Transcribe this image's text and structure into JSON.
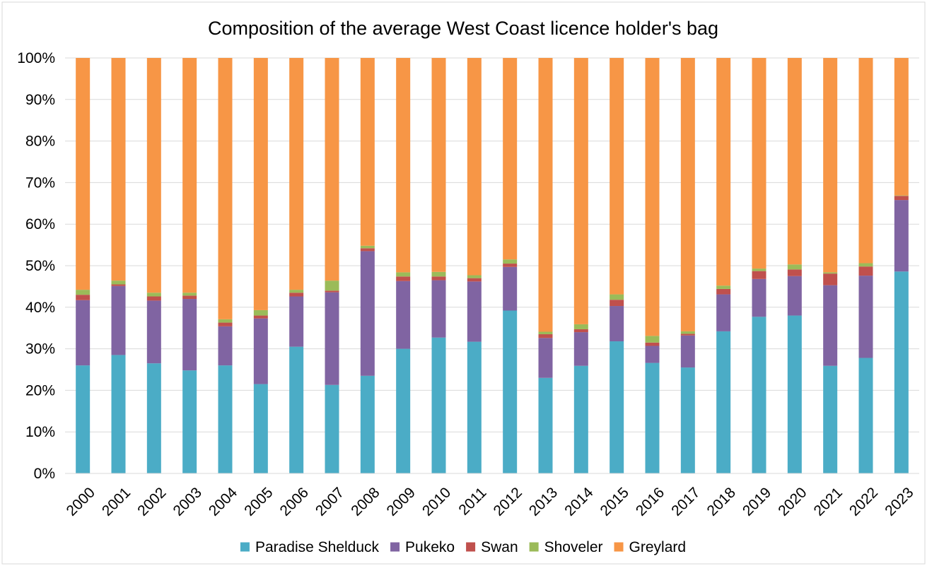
{
  "chart_data": {
    "type": "bar",
    "stacked": true,
    "percent": true,
    "title": "Composition of the average West Coast licence holder's bag",
    "xlabel": "",
    "ylabel": "",
    "ylim": [
      0,
      100
    ],
    "yticks": [
      "0%",
      "10%",
      "20%",
      "30%",
      "40%",
      "50%",
      "60%",
      "70%",
      "80%",
      "90%",
      "100%"
    ],
    "grid": true,
    "legend_position": "bottom",
    "categories": [
      "2000",
      "2001",
      "2002",
      "2003",
      "2004",
      "2005",
      "2006",
      "2007",
      "2008",
      "2009",
      "2010",
      "2011",
      "2012",
      "2013",
      "2014",
      "2015",
      "2016",
      "2017",
      "2018",
      "2019",
      "2020",
      "2021",
      "2022",
      "2023"
    ],
    "series": [
      {
        "name": "Paradise Shelduck",
        "color": "#4BACC6",
        "values": [
          26,
          28.5,
          26.5,
          24.8,
          26,
          21.5,
          30.5,
          21.3,
          23.5,
          30,
          32.7,
          31.7,
          39.2,
          23,
          25.9,
          31.8,
          26.6,
          25.5,
          34.2,
          37.7,
          38,
          25.9,
          27.8,
          48.6
        ]
      },
      {
        "name": "Pukeko",
        "color": "#8064A2",
        "values": [
          15.7,
          16.6,
          15.1,
          17.2,
          9.4,
          15.8,
          12.1,
          22.3,
          30,
          16.3,
          13.8,
          14.5,
          10.5,
          9.6,
          8.1,
          8.5,
          4.1,
          7.7,
          8.9,
          9.1,
          9.5,
          19.4,
          19.8,
          17.2
        ]
      },
      {
        "name": "Swan",
        "color": "#C0504D",
        "values": [
          1.3,
          0.4,
          1,
          0.8,
          0.9,
          0.7,
          0.9,
          0.4,
          0.7,
          1.1,
          0.9,
          0.8,
          0.8,
          0.9,
          0.7,
          1.5,
          0.8,
          0.4,
          1.3,
          1.9,
          1.6,
          2.8,
          2.2,
          1
        ]
      },
      {
        "name": "Shoveler",
        "color": "#9BBB59",
        "values": [
          1.2,
          0.9,
          0.9,
          0.7,
          0.8,
          1.3,
          0.7,
          2.4,
          0.6,
          1,
          1.1,
          0.7,
          1,
          0.6,
          1.2,
          1.3,
          1.6,
          0.6,
          0.8,
          0.6,
          1.2,
          0.3,
          0.8,
          0.1
        ]
      },
      {
        "name": "Greylard",
        "color": "#F79646",
        "values": [
          55.8,
          53.6,
          56.5,
          56.5,
          62.9,
          60.7,
          55.8,
          53.6,
          45.2,
          51.6,
          51.5,
          52.3,
          48.5,
          65.9,
          64.1,
          56.9,
          66.9,
          65.8,
          54.8,
          50.7,
          49.7,
          51.6,
          49.4,
          33.1
        ]
      }
    ]
  }
}
